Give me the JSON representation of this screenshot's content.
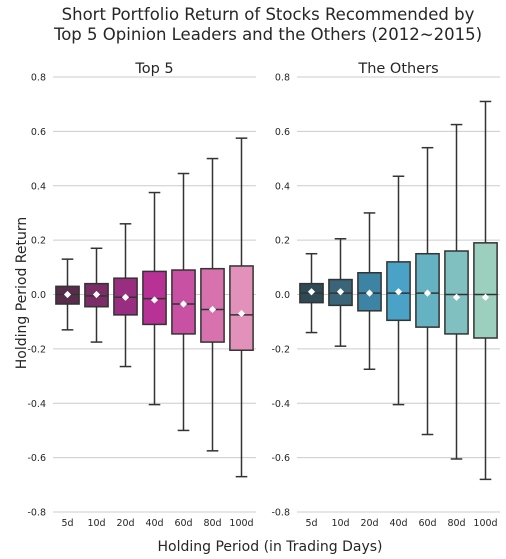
{
  "figure": {
    "title_line1": "Short Portfolio Return of Stocks Recommended by",
    "title_line2": "Top 5 Opinion Leaders and the Others (2012~2015)",
    "xlabel": "Holding Period (in Trading Days)",
    "ylabel": "Holding Period Return"
  },
  "chart_data": [
    {
      "type": "box",
      "title": "Top 5",
      "categories": [
        "5d",
        "10d",
        "20d",
        "40d",
        "60d",
        "80d",
        "100d"
      ],
      "ylim": [
        -0.8,
        0.8
      ],
      "yticks": [
        "0.8",
        "0.6",
        "0.4",
        "0.2",
        "0.0",
        "-0.2",
        "-0.4",
        "-0.6",
        "-0.8"
      ],
      "ytick_values": [
        0.8,
        0.6,
        0.4,
        0.2,
        0.0,
        -0.2,
        -0.4,
        -0.6,
        -0.8
      ],
      "grid": "horizontal",
      "boxes": [
        {
          "label": "5d",
          "whisker_low": -0.13,
          "q1": -0.035,
          "median": 0.0,
          "q3": 0.03,
          "whisker_high": 0.13,
          "mean": 0.0,
          "color": "#5a2c4b"
        },
        {
          "label": "10d",
          "whisker_low": -0.175,
          "q1": -0.045,
          "median": -0.005,
          "q3": 0.04,
          "whisker_high": 0.17,
          "mean": 0.0,
          "color": "#7b2d66"
        },
        {
          "label": "20d",
          "whisker_low": -0.265,
          "q1": -0.075,
          "median": -0.01,
          "q3": 0.06,
          "whisker_high": 0.26,
          "mean": -0.01,
          "color": "#992e81"
        },
        {
          "label": "40d",
          "whisker_low": -0.405,
          "q1": -0.11,
          "median": -0.015,
          "q3": 0.085,
          "whisker_high": 0.375,
          "mean": -0.02,
          "color": "#b83296"
        },
        {
          "label": "60d",
          "whisker_low": -0.5,
          "q1": -0.145,
          "median": -0.035,
          "q3": 0.09,
          "whisker_high": 0.445,
          "mean": -0.035,
          "color": "#c851a3"
        },
        {
          "label": "80d",
          "whisker_low": -0.575,
          "q1": -0.175,
          "median": -0.055,
          "q3": 0.095,
          "whisker_high": 0.5,
          "mean": -0.055,
          "color": "#d772ae"
        },
        {
          "label": "100d",
          "whisker_low": -0.67,
          "q1": -0.205,
          "median": -0.075,
          "q3": 0.105,
          "whisker_high": 0.575,
          "mean": -0.07,
          "color": "#e191ba"
        }
      ]
    },
    {
      "type": "box",
      "title": "The Others",
      "categories": [
        "5d",
        "10d",
        "20d",
        "40d",
        "60d",
        "80d",
        "100d"
      ],
      "ylim": [
        -0.8,
        0.8
      ],
      "yticks": [
        "0.8",
        "0.6",
        "0.4",
        "0.2",
        "0.0",
        "-0.2",
        "-0.4",
        "-0.6",
        "-0.8"
      ],
      "ytick_values": [
        0.8,
        0.6,
        0.4,
        0.2,
        0.0,
        -0.2,
        -0.4,
        -0.6,
        -0.8
      ],
      "grid": "horizontal",
      "boxes": [
        {
          "label": "5d",
          "whisker_low": -0.14,
          "q1": -0.03,
          "median": 0.005,
          "q3": 0.04,
          "whisker_high": 0.15,
          "mean": 0.01,
          "color": "#2e4a55"
        },
        {
          "label": "10d",
          "whisker_low": -0.19,
          "q1": -0.04,
          "median": 0.005,
          "q3": 0.055,
          "whisker_high": 0.205,
          "mean": 0.01,
          "color": "#3a6478"
        },
        {
          "label": "20d",
          "whisker_low": -0.275,
          "q1": -0.06,
          "median": 0.005,
          "q3": 0.08,
          "whisker_high": 0.3,
          "mean": 0.005,
          "color": "#3d83a3"
        },
        {
          "label": "40d",
          "whisker_low": -0.405,
          "q1": -0.095,
          "median": 0.005,
          "q3": 0.12,
          "whisker_high": 0.435,
          "mean": 0.01,
          "color": "#4ba2c7"
        },
        {
          "label": "60d",
          "whisker_low": -0.515,
          "q1": -0.12,
          "median": 0.005,
          "q3": 0.15,
          "whisker_high": 0.54,
          "mean": 0.005,
          "color": "#64b2c2"
        },
        {
          "label": "80d",
          "whisker_low": -0.605,
          "q1": -0.145,
          "median": 0.0,
          "q3": 0.16,
          "whisker_high": 0.625,
          "mean": -0.01,
          "color": "#80c0c0"
        },
        {
          "label": "100d",
          "whisker_low": -0.68,
          "q1": -0.16,
          "median": 0.0,
          "q3": 0.19,
          "whisker_high": 0.71,
          "mean": -0.01,
          "color": "#9ccfbd"
        }
      ]
    }
  ]
}
